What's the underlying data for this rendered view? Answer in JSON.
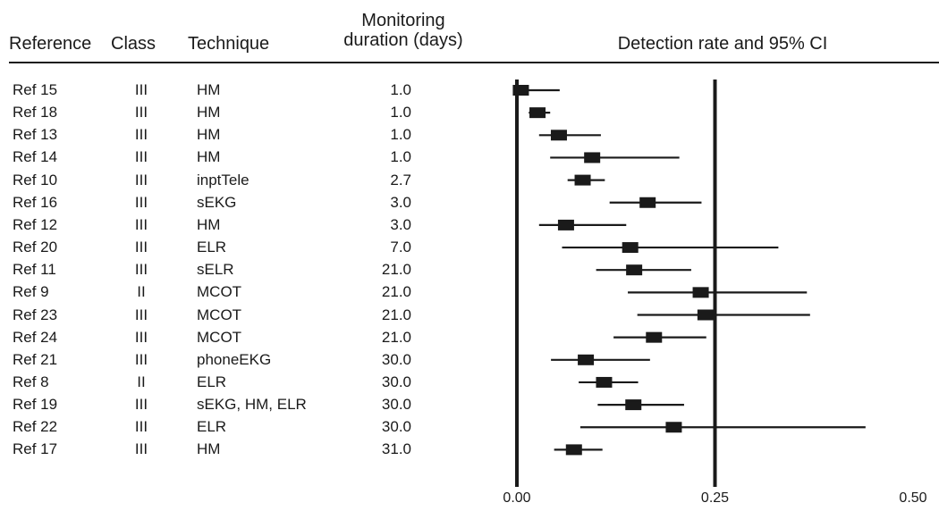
{
  "headers": {
    "reference": "Reference",
    "class": "Class",
    "technique": "Technique",
    "monitoring_line1": "Monitoring",
    "monitoring_line2": "duration (days)",
    "ci": "Detection rate and 95% CI"
  },
  "chart_data": {
    "type": "forest",
    "title": "Detection rate and 95% CI",
    "xlim": [
      0.0,
      0.5
    ],
    "x_ticks": [
      "0.00",
      "0.25",
      "0.50"
    ],
    "x_tick_values": [
      0.0,
      0.25,
      0.5
    ],
    "reference_lines": [
      0.0,
      0.25
    ],
    "rows": [
      {
        "reference": "Ref 15",
        "class": "III",
        "technique": "HM",
        "duration": "1.0",
        "estimate": 0.005,
        "ci_low": -0.005,
        "ci_high": 0.054
      },
      {
        "reference": "Ref 18",
        "class": "III",
        "technique": "HM",
        "duration": "1.0",
        "estimate": 0.026,
        "ci_low": 0.015,
        "ci_high": 0.042
      },
      {
        "reference": "Ref 13",
        "class": "III",
        "technique": "HM",
        "duration": "1.0",
        "estimate": 0.053,
        "ci_low": 0.028,
        "ci_high": 0.106
      },
      {
        "reference": "Ref 14",
        "class": "III",
        "technique": "HM",
        "duration": "1.0",
        "estimate": 0.095,
        "ci_low": 0.042,
        "ci_high": 0.205
      },
      {
        "reference": "Ref 10",
        "class": "III",
        "technique": "inptTele",
        "duration": "2.7",
        "estimate": 0.083,
        "ci_low": 0.064,
        "ci_high": 0.111
      },
      {
        "reference": "Ref 16",
        "class": "III",
        "technique": "sEKG",
        "duration": "3.0",
        "estimate": 0.165,
        "ci_low": 0.117,
        "ci_high": 0.233
      },
      {
        "reference": "Ref 12",
        "class": "III",
        "technique": "HM",
        "duration": "3.0",
        "estimate": 0.062,
        "ci_low": 0.028,
        "ci_high": 0.138
      },
      {
        "reference": "Ref 20",
        "class": "III",
        "technique": "ELR",
        "duration": "7.0",
        "estimate": 0.143,
        "ci_low": 0.057,
        "ci_high": 0.33
      },
      {
        "reference": "Ref 11",
        "class": "III",
        "technique": "sELR",
        "duration": "21.0",
        "estimate": 0.148,
        "ci_low": 0.1,
        "ci_high": 0.22
      },
      {
        "reference": "Ref 9",
        "class": "II",
        "technique": "MCOT",
        "duration": "21.0",
        "estimate": 0.232,
        "ci_low": 0.14,
        "ci_high": 0.366
      },
      {
        "reference": "Ref 23",
        "class": "III",
        "technique": "MCOT",
        "duration": "21.0",
        "estimate": 0.238,
        "ci_low": 0.152,
        "ci_high": 0.37
      },
      {
        "reference": "Ref 24",
        "class": "III",
        "technique": "MCOT",
        "duration": "21.0",
        "estimate": 0.173,
        "ci_low": 0.122,
        "ci_high": 0.239
      },
      {
        "reference": "Ref 21",
        "class": "III",
        "technique": "phoneEKG",
        "duration": "30.0",
        "estimate": 0.087,
        "ci_low": 0.043,
        "ci_high": 0.168
      },
      {
        "reference": "Ref 8",
        "class": "II",
        "technique": "ELR",
        "duration": "30.0",
        "estimate": 0.11,
        "ci_low": 0.078,
        "ci_high": 0.153
      },
      {
        "reference": "Ref 19",
        "class": "III",
        "technique": "sEKG, HM, ELR",
        "duration": "30.0",
        "estimate": 0.147,
        "ci_low": 0.102,
        "ci_high": 0.211
      },
      {
        "reference": "Ref 22",
        "class": "III",
        "technique": "ELR",
        "duration": "30.0",
        "estimate": 0.198,
        "ci_low": 0.08,
        "ci_high": 0.44
      },
      {
        "reference": "Ref 17",
        "class": "III",
        "technique": "HM",
        "duration": "31.0",
        "estimate": 0.072,
        "ci_low": 0.047,
        "ci_high": 0.108
      }
    ]
  }
}
